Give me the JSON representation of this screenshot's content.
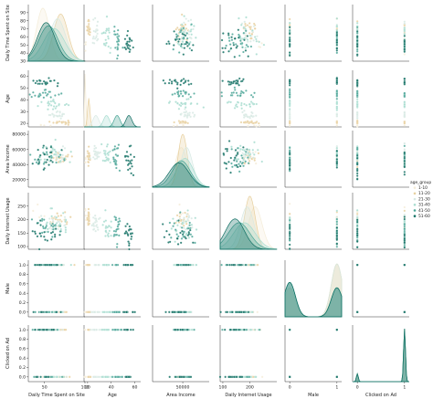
{
  "chart_data": {
    "type": "scatter",
    "variables": [
      "Daily Time Spent on Site",
      "Age",
      "Area Income",
      "Daily Internet Usage",
      "Male",
      "Clicked on Ad"
    ],
    "hue": "age_group",
    "diagonal": "kde",
    "off_diagonal": "scatter",
    "legend_title": "age_group",
    "legend_placement": "right",
    "groups": [
      "1-10",
      "11-20",
      "21-30",
      "31-40",
      "41-50",
      "51-60"
    ],
    "colors": [
      "#f4ecd8",
      "#e7cf9e",
      "#d7e9e3",
      "#a7dccf",
      "#4aa596",
      "#0f6e62"
    ],
    "ranges": {
      "Daily Time Spent on Site": [
        30,
        100
      ],
      "Age": [
        17,
        65
      ],
      "Area Income": [
        10000,
        85000
      ],
      "Daily Internet Usage": [
        90,
        300
      ],
      "Male": [
        -0.1,
        1.1
      ],
      "Clicked on Ad": [
        -0.1,
        1.1
      ]
    },
    "x_ticks": {
      "Daily Time Spent on Site": [
        "50",
        "100"
      ],
      "Age": [
        "20",
        "40",
        "60"
      ],
      "Area Income": [
        "50000"
      ],
      "Daily Internet Usage": [
        "100",
        "200"
      ],
      "Male": [
        "0",
        "1"
      ],
      "Clicked on Ad": [
        "0",
        "1"
      ]
    },
    "y_ticks": {
      "Daily Time Spent on Site": [
        "30",
        "40",
        "50",
        "60",
        "70",
        "80",
        "90"
      ],
      "Age": [
        "20",
        "30",
        "40",
        "50",
        "60"
      ],
      "Area Income": [
        "20000",
        "40000",
        "60000",
        "80000"
      ],
      "Daily Internet Usage": [
        "100",
        "150",
        "200",
        "250"
      ],
      "Male": [
        "0.0",
        "0.2",
        "0.4",
        "0.6",
        "0.8",
        "1.0"
      ],
      "Clicked on Ad": [
        "0.0",
        "0.2",
        "0.4",
        "0.6",
        "0.8",
        "1.0"
      ]
    },
    "group_stats": {
      "Daily Time Spent on Site": [
        [
          48,
          8
        ],
        [
          70,
          9
        ],
        [
          66,
          10
        ],
        [
          62,
          13
        ],
        [
          55,
          12
        ],
        [
          52,
          11
        ]
      ],
      "Age": [
        [
          18,
          0.5
        ],
        [
          21,
          1
        ],
        [
          27,
          2.5
        ],
        [
          36,
          2.5
        ],
        [
          45,
          2.5
        ],
        [
          55,
          2.5
        ]
      ],
      "Area Income": [
        [
          48000,
          8000
        ],
        [
          50000,
          6000
        ],
        [
          55000,
          8000
        ],
        [
          53000,
          11000
        ],
        [
          48000,
          12000
        ],
        [
          45000,
          13000
        ]
      ],
      "Daily Internet Usage": [
        [
          220,
          25
        ],
        [
          200,
          20
        ],
        [
          190,
          25
        ],
        [
          180,
          40
        ],
        [
          160,
          40
        ],
        [
          145,
          35
        ]
      ],
      "Male": [
        [
          0.5,
          0
        ],
        [
          0.5,
          0
        ],
        [
          0.5,
          0
        ],
        [
          0.5,
          0
        ],
        [
          0.5,
          0
        ],
        [
          0.5,
          0
        ]
      ],
      "Clicked on Ad": [
        [
          0.5,
          0
        ],
        [
          0.5,
          0
        ],
        [
          0.5,
          0
        ],
        [
          0.5,
          0
        ],
        [
          0.5,
          0
        ],
        [
          0.5,
          0
        ]
      ]
    }
  }
}
